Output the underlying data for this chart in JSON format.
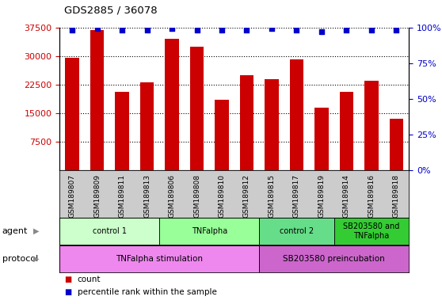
{
  "title": "GDS2885 / 36078",
  "samples": [
    "GSM189807",
    "GSM189809",
    "GSM189811",
    "GSM189813",
    "GSM189806",
    "GSM189808",
    "GSM189810",
    "GSM189812",
    "GSM189815",
    "GSM189817",
    "GSM189819",
    "GSM189814",
    "GSM189816",
    "GSM189818"
  ],
  "counts": [
    29500,
    36800,
    20500,
    23000,
    34500,
    32500,
    18500,
    25000,
    24000,
    29000,
    16500,
    20500,
    23500,
    13500
  ],
  "percentile_ranks": [
    98,
    99,
    98,
    98,
    99,
    98,
    98,
    98,
    99,
    98,
    97,
    98,
    98,
    98
  ],
  "ylim_left": [
    0,
    37500
  ],
  "ylim_right": [
    0,
    100
  ],
  "yticks_left": [
    7500,
    15000,
    22500,
    30000,
    37500
  ],
  "yticks_right": [
    0,
    25,
    50,
    75,
    100
  ],
  "agent_groups": [
    {
      "label": "control 1",
      "start": 0,
      "end": 3,
      "color": "#ccffcc"
    },
    {
      "label": "TNFalpha",
      "start": 4,
      "end": 7,
      "color": "#99ff99"
    },
    {
      "label": "control 2",
      "start": 8,
      "end": 10,
      "color": "#66dd88"
    },
    {
      "label": "SB203580 and\nTNFalpha",
      "start": 11,
      "end": 13,
      "color": "#33cc33"
    }
  ],
  "protocol_groups": [
    {
      "label": "TNFalpha stimulation",
      "start": 0,
      "end": 7,
      "color": "#ee88ee"
    },
    {
      "label": "SB203580 preincubation",
      "start": 8,
      "end": 13,
      "color": "#cc66cc"
    }
  ],
  "bar_color": "#cc0000",
  "dot_color": "#0000cc",
  "background_color": "#ffffff",
  "tick_label_color_left": "#cc0000",
  "tick_label_color_right": "#0000cc",
  "sample_area_color": "#cccccc",
  "legend_items": [
    {
      "color": "#cc0000",
      "label": "count"
    },
    {
      "color": "#0000cc",
      "label": "percentile rank within the sample"
    }
  ]
}
